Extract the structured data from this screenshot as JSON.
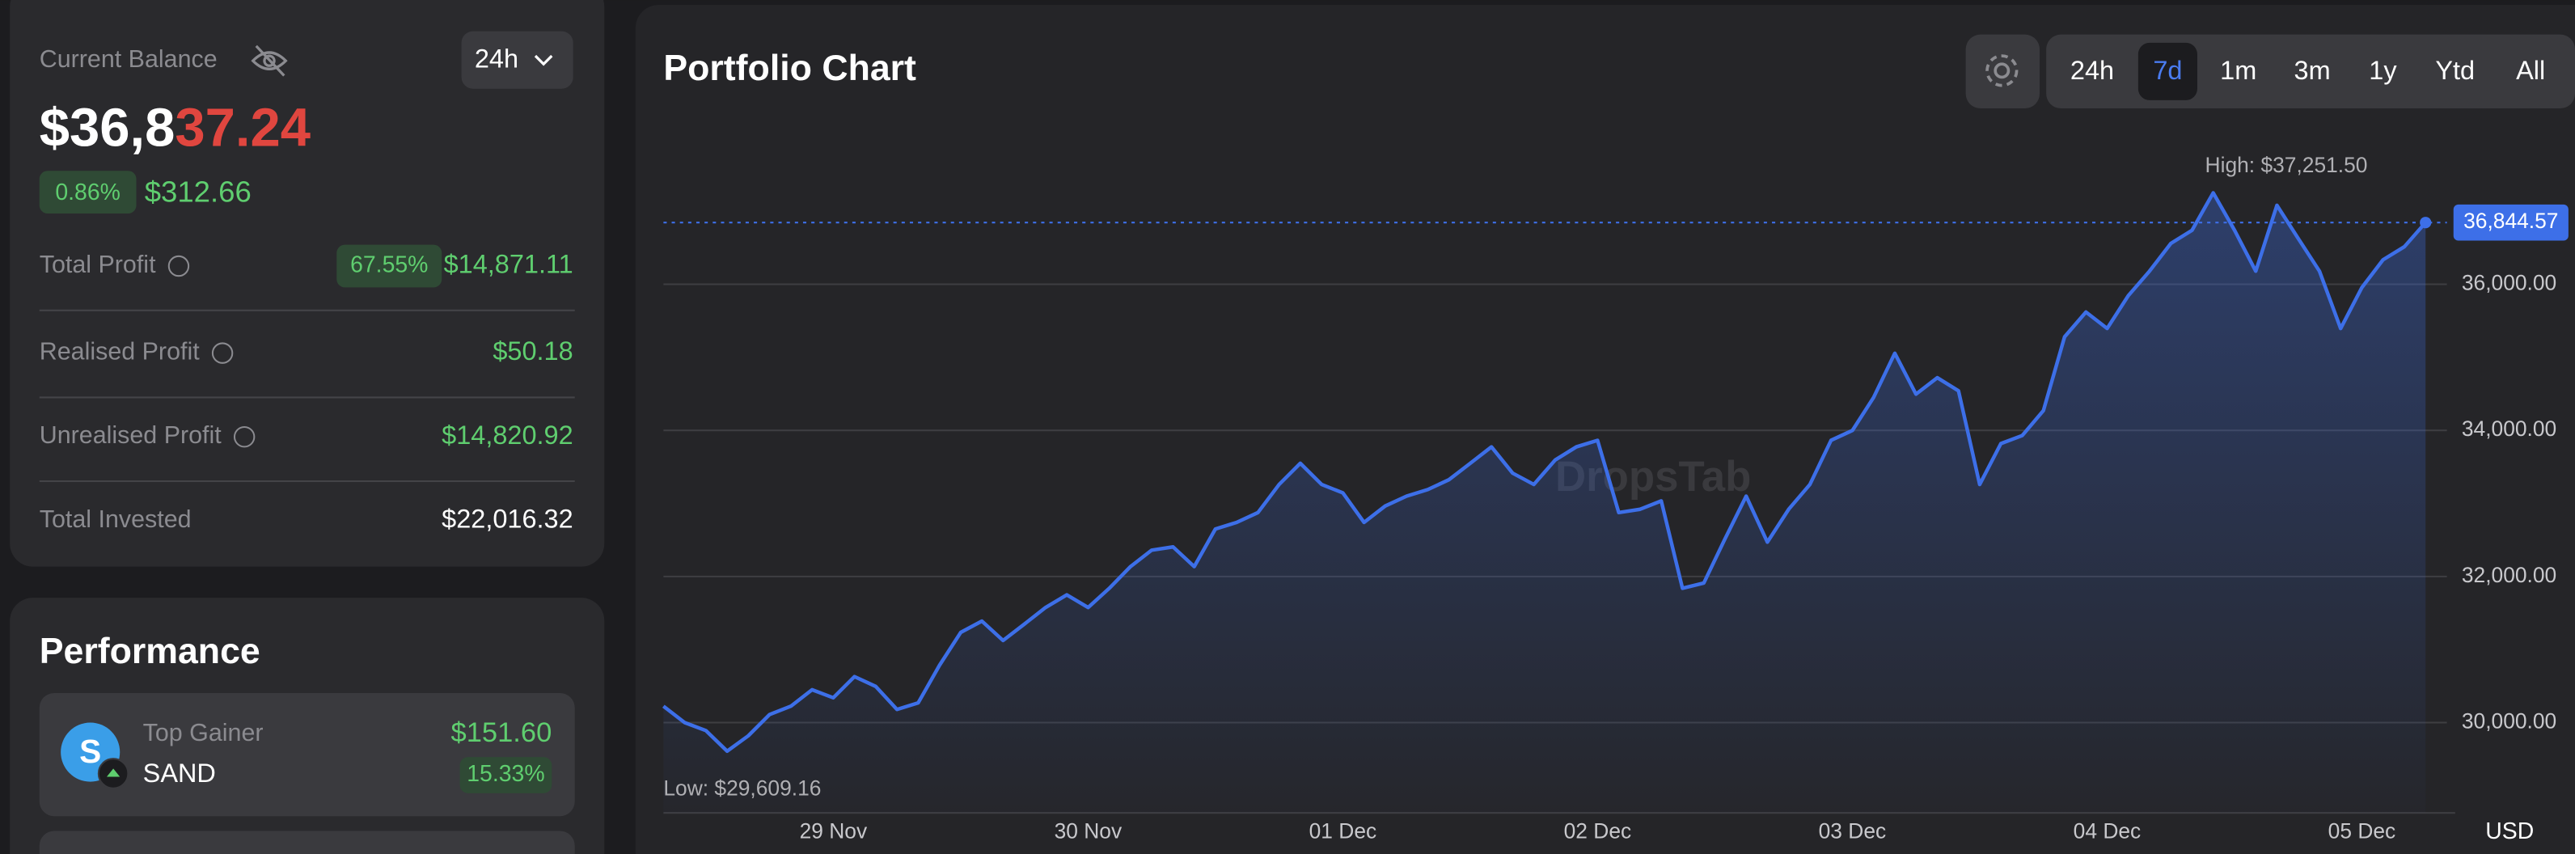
{
  "balance": {
    "label": "Current Balance",
    "timeframe": "24h",
    "amount_main": "$36,8",
    "amount_highlight": "37.24",
    "change_pct": "0.86%",
    "change_value": "$312.66"
  },
  "stats": [
    {
      "label": "Total Profit",
      "badge": "67.55%",
      "value": "$14,871.11"
    },
    {
      "label": "Realised Profit",
      "value": "$50.18"
    },
    {
      "label": "Unrealised Profit",
      "value": "$14,820.92"
    },
    {
      "label": "Total Invested",
      "value": "$22,016.32"
    }
  ],
  "performance": {
    "title": "Performance",
    "top_gainer": {
      "label": "Top Gainer",
      "asset": "SAND",
      "value": "$151.60",
      "pct": "15.33%"
    }
  },
  "chart_data": {
    "type": "line",
    "title": "Portfolio Chart",
    "ranges": [
      "24h",
      "7d",
      "1m",
      "3m",
      "1y",
      "Ytd",
      "All"
    ],
    "active_range": 1,
    "watermark": "DropsTab",
    "currency": "USD",
    "color": "#3d6fe8",
    "values": [
      30225,
      30000,
      29890,
      29609.16,
      29820,
      30110,
      30225,
      30450,
      30340,
      30630,
      30495,
      30180,
      30270,
      30785,
      31235,
      31390,
      31125,
      31350,
      31575,
      31750,
      31575,
      31840,
      32135,
      32360,
      32405,
      32135,
      32650,
      32740,
      32875,
      33260,
      33550,
      33260,
      33145,
      32740,
      32965,
      33100,
      33190,
      33325,
      33550,
      33775,
      33415,
      33260,
      33595,
      33775,
      33865,
      32875,
      32920,
      33035,
      31840,
      31910,
      32515,
      33100,
      32470,
      32920,
      33260,
      33865,
      34000,
      34450,
      35055,
      34495,
      34720,
      34540,
      33260,
      33820,
      33930,
      34270,
      35280,
      35620,
      35395,
      35845,
      36180,
      36560,
      36740,
      37251.5,
      36740,
      36180,
      37080,
      36630,
      36180,
      35395,
      35955,
      36335,
      36515,
      36844.57
    ],
    "current_label": "36,844.57",
    "high_label": "High: $37,251.50",
    "low_label": "Low: $29,609.16",
    "ylim": [
      29000,
      37800
    ],
    "yticks": [
      {
        "value": 30000,
        "label": "30,000.00"
      },
      {
        "value": 32000,
        "label": "32,000.00"
      },
      {
        "value": 34000,
        "label": "34,000.00"
      },
      {
        "value": 36000,
        "label": "36,000.00"
      }
    ],
    "xticks": [
      {
        "value": 8,
        "label": "29 Nov"
      },
      {
        "value": 20,
        "label": "30 Nov"
      },
      {
        "value": 32,
        "label": "01 Dec"
      },
      {
        "value": 44,
        "label": "02 Dec"
      },
      {
        "value": 56,
        "label": "03 Dec"
      },
      {
        "value": 68,
        "label": "04 Dec"
      },
      {
        "value": 80,
        "label": "05 Dec"
      }
    ],
    "grid": true
  }
}
